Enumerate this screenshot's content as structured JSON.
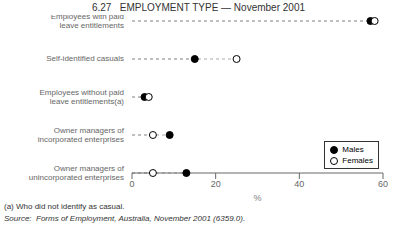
{
  "chart_data": {
    "type": "dot",
    "title": "6.27   EMPLOYMENT TYPE — November 2001",
    "orientation": "horizontal",
    "categories": [
      "Employees with paid\nleave entitlements",
      "Self-identified casuals",
      "Employees without paid\nleave entitlements(a)",
      "Owner managers of\nincorporated enterprises",
      "Owner managers of\nunincorporated enterprises"
    ],
    "series": [
      {
        "name": "Males",
        "color": "black",
        "values": [
          57,
          15,
          3,
          9,
          13
        ]
      },
      {
        "name": "Females",
        "color": "white",
        "values": [
          58,
          25,
          4,
          5,
          5
        ]
      }
    ],
    "xlabel": "%",
    "xlim": [
      0,
      60
    ],
    "xticks": [
      0,
      20,
      40,
      60
    ],
    "legend": "lower right",
    "annotations": [
      "(a) Who did not identify as casual.",
      "Source:  Forms of Employment, Australia, November 2001 (6359.0)."
    ]
  }
}
